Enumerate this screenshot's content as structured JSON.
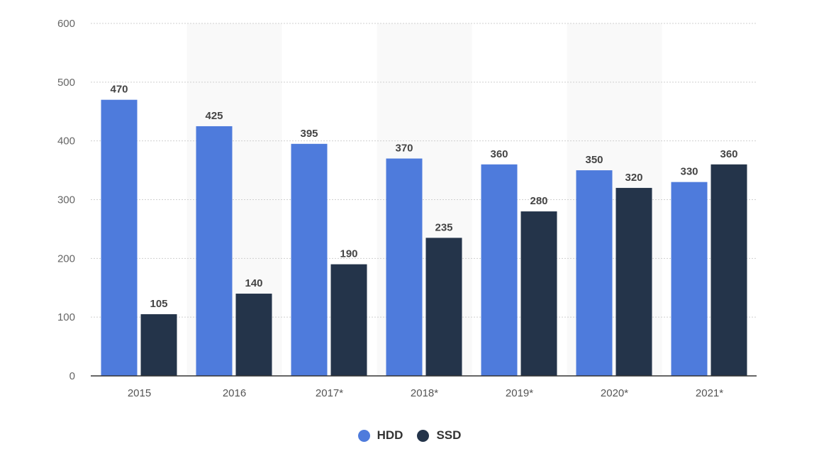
{
  "chart_data": {
    "type": "bar",
    "categories": [
      "2015",
      "2016",
      "2017*",
      "2018*",
      "2019*",
      "2020*",
      "2021*"
    ],
    "series": [
      {
        "name": "HDD",
        "color": "#4E7BDC",
        "values": [
          470,
          425,
          395,
          370,
          360,
          350,
          330
        ]
      },
      {
        "name": "SSD",
        "color": "#24344A",
        "values": [
          105,
          140,
          190,
          235,
          280,
          320,
          360
        ]
      }
    ],
    "ylim": [
      0,
      600
    ],
    "yticks": [
      0,
      100,
      200,
      300,
      400,
      500,
      600
    ],
    "grid": true,
    "legend_position": "bottom-center"
  }
}
